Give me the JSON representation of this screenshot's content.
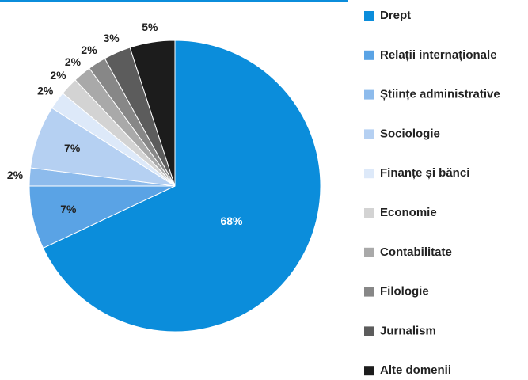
{
  "chart_data": {
    "type": "pie",
    "categories": [
      "Drept",
      "Relații internaționale",
      "Științe administrative",
      "Sociologie",
      "Finanțe și bănci",
      "Economie",
      "Contabilitate",
      "Filologie",
      "Jurnalism",
      "Alte domenii"
    ],
    "values": [
      68,
      7,
      2,
      7,
      2,
      2,
      2,
      2,
      3,
      5
    ],
    "value_labels": [
      "68%",
      "7%",
      "2%",
      "7%",
      "2%",
      "2%",
      "2%",
      "2%",
      "3%",
      "5%"
    ],
    "colors": [
      "#0b8ddb",
      "#5aa3e5",
      "#8dbbec",
      "#b5d0f2",
      "#dde9f9",
      "#d3d3d3",
      "#a9a9a9",
      "#878787",
      "#5c5c5c",
      "#1c1c1c"
    ],
    "legend": "right"
  }
}
